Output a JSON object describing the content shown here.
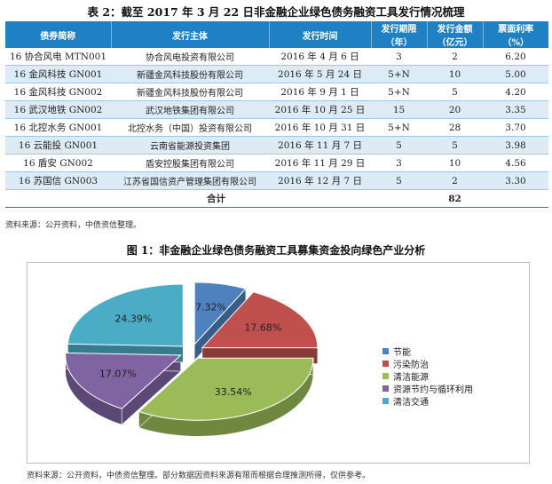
{
  "table": {
    "title": "表 2：截至 2017 年 3 月 22 日非金融企业绿色债务融资工具发行情况梳理",
    "headers": {
      "name": "债券简称",
      "issuer": "发行主体",
      "date": "发行时间",
      "term_l1": "发行期限",
      "term_l2": "（年）",
      "amount_l1": "发行金额",
      "amount_l2": "（亿元）",
      "rate_l1": "票面利率",
      "rate_l2": "（%）"
    },
    "rows": [
      {
        "name": "16 协合风电 MTN001",
        "issuer": "协合风电投资有限公司",
        "date": "2016 年 4 月 6 日",
        "term": "3",
        "amount": "2",
        "rate": "6.20"
      },
      {
        "name": "16 金风科技 GN001",
        "issuer": "新疆金风科技股份有限公司",
        "date": "2016 年 5 月 24 日",
        "term": "5+N",
        "amount": "10",
        "rate": "5.00"
      },
      {
        "name": "16 金风科技 GN002",
        "issuer": "新疆金风科技股份有限公司",
        "date": "2016 年 9 月 1 日",
        "term": "5+N",
        "amount": "5",
        "rate": "4.20"
      },
      {
        "name": "16 武汉地铁 GN002",
        "issuer": "武汉地铁集团有限公司",
        "date": "2016 年 10 月 25 日",
        "term": "15",
        "amount": "20",
        "rate": "3.35"
      },
      {
        "name": "16 北控水务 GN001",
        "issuer": "北控水务（中国）投资有限公司",
        "date": "2016 年 10 月 31 日",
        "term": "5+N",
        "amount": "28",
        "rate": "3.70"
      },
      {
        "name": "16 云能投 GN001",
        "issuer": "云南省能源投资集团",
        "date": "2016 年 11 月 7 日",
        "term": "5",
        "amount": "5",
        "rate": "3.98"
      },
      {
        "name": "16 盾安 GN002",
        "issuer": "盾安控股集团有限公司",
        "date": "2016 年 11 月 29 日",
        "term": "3",
        "amount": "10",
        "rate": "4.56"
      },
      {
        "name": "16 苏国信 GN003",
        "issuer": "江苏省国信资产管理集团有限公司",
        "date": "2016 年 12 月 7 日",
        "term": "5",
        "amount": "2",
        "rate": "3.30"
      }
    ],
    "total_label": "合计",
    "total_amount": "82",
    "source": "资料来源：公开资料，中债资信整理。"
  },
  "figure": {
    "title": "图 1：非金融企业绿色债务融资工具募集资金投向绿色产业分析",
    "source": "资料来源：公开资料，中债资信整理。部分数据因资料来源有限而根据合理推测所得，仅供参考。"
  },
  "chart_data": {
    "type": "pie",
    "title": "图 1：非金融企业绿色债务融资工具募集资金投向绿色产业分析",
    "legend_position": "right",
    "slices": [
      {
        "name": "节能",
        "value": 7.32,
        "label": "7.32%",
        "color": "#4e81bd"
      },
      {
        "name": "污染防治",
        "value": 17.68,
        "label": "17.68%",
        "color": "#c0504d"
      },
      {
        "name": "清洁能源",
        "value": 33.54,
        "label": "33.54%",
        "color": "#9bbb59"
      },
      {
        "name": "资源节约与循环利用",
        "value": 17.07,
        "label": "17.07%",
        "color": "#8064a2"
      },
      {
        "name": "清洁交通",
        "value": 24.39,
        "label": "24.39%",
        "color": "#4bacc6"
      }
    ]
  }
}
